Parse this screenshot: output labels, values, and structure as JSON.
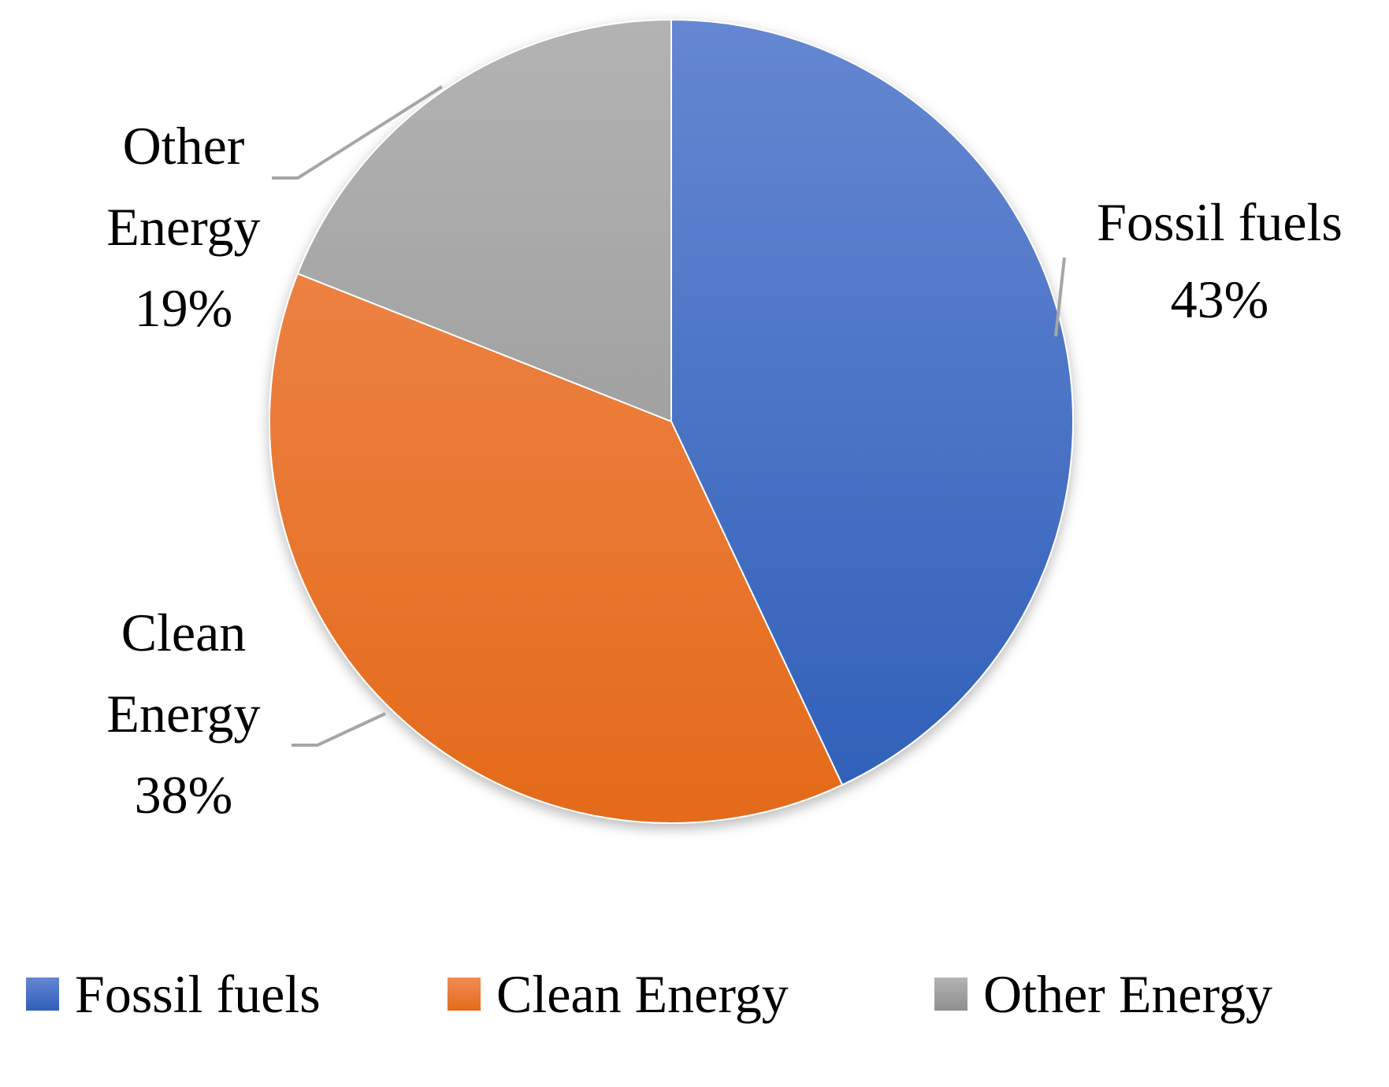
{
  "chart_data": {
    "type": "pie",
    "title": "",
    "categories": [
      "Fossil fuels",
      "Clean Energy",
      "Other Energy"
    ],
    "values": [
      43,
      38,
      19
    ],
    "unit": "%",
    "slices": [
      {
        "name": "Fossil fuels",
        "value": 43,
        "label_lines": [
          "Fossil fuels",
          "43%"
        ],
        "color": "#4472c4",
        "color_top": "#6687d2",
        "color_bottom": "#2e5fb8"
      },
      {
        "name": "Clean Energy",
        "value": 38,
        "label_lines": [
          "Clean",
          "Energy",
          "38%"
        ],
        "color": "#ed7d31",
        "color_top": "#f08c55",
        "color_bottom": "#e46a1a"
      },
      {
        "name": "Other Energy",
        "value": 19,
        "label_lines": [
          "Other",
          "Energy",
          "19%"
        ],
        "color": "#a5a5a5",
        "color_top": "#b3b3b3",
        "color_bottom": "#8f8f8f"
      }
    ],
    "start_angle_deg": 0,
    "direction": "clockwise",
    "legend": {
      "position": "bottom",
      "items": [
        "Fossil fuels",
        "Clean Energy",
        "Other Energy"
      ]
    },
    "leader_line_color": "#a6a6a6"
  }
}
